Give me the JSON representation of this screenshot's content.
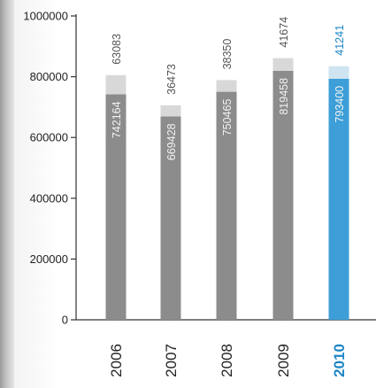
{
  "chart_data": {
    "type": "bar",
    "stacked": true,
    "categories": [
      "2006",
      "2007",
      "2008",
      "2009",
      "2010"
    ],
    "highlight_category": "2010",
    "series": [
      {
        "values": [
          742164,
          669428,
          750465,
          819458,
          793400
        ]
      },
      {
        "values": [
          63083,
          36473,
          38350,
          41674,
          41241
        ]
      }
    ],
    "y_ticks": [
      0,
      200000,
      400000,
      600000,
      800000,
      1000000
    ],
    "y_tick_labels": [
      "0",
      "200000",
      "400000",
      "600000",
      "800000",
      "1000000"
    ],
    "value_labels_bottom": [
      "742164",
      "669428",
      "750465",
      "819458",
      "793400"
    ],
    "value_labels_top": [
      "63083",
      "36473",
      "38350",
      "41674",
      "41241"
    ],
    "ylim": [
      0,
      1000000
    ],
    "grid": false,
    "colors": {
      "base": "#8c8c8c",
      "top": "#d8d8d8",
      "highlight_base": "#3d9ed8",
      "highlight_top": "#cfe3f0",
      "axis": "#333333",
      "label_grey": "#555555",
      "label_light": "#f2f2f2",
      "highlight_label": "#1d86c6"
    }
  }
}
